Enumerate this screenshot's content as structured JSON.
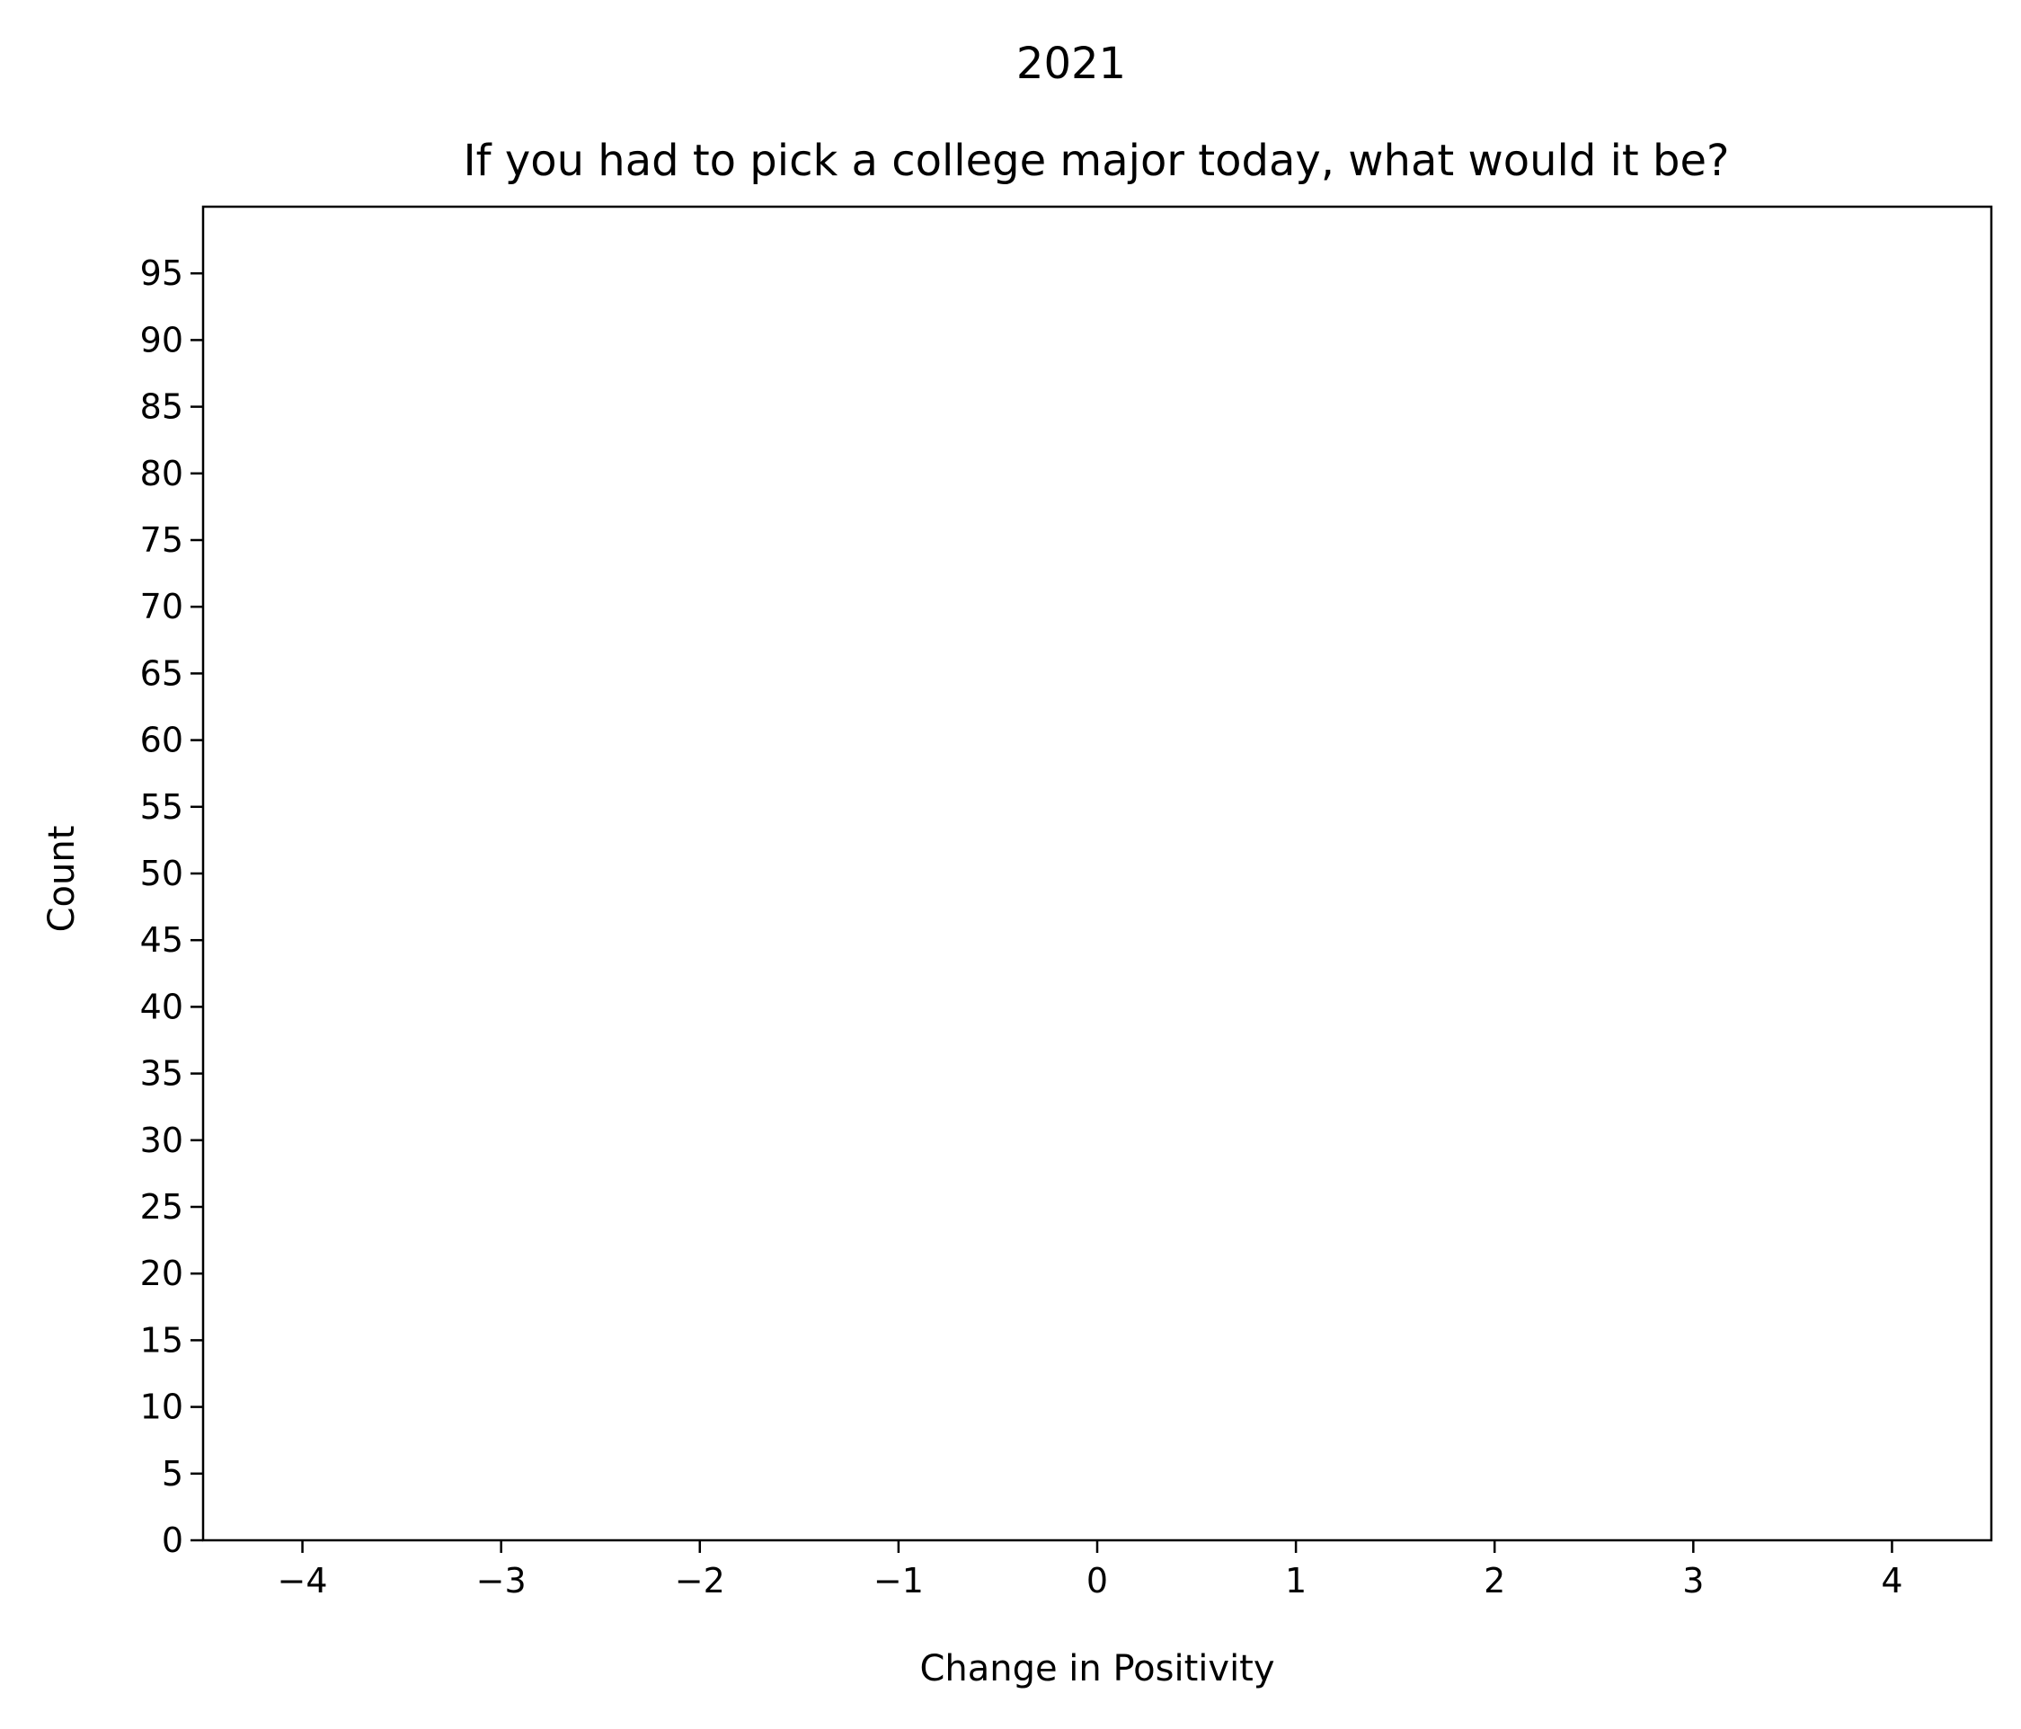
{
  "chart_data": {
    "type": "bar",
    "suptitle": "2021",
    "title": "If you had to pick a college major today, what would it be?",
    "xlabel": "Change in Positivity",
    "ylabel": "Count",
    "xlim": [
      -4.5,
      4.5
    ],
    "ylim": [
      0,
      100
    ],
    "xticks": [
      -4,
      -3,
      -2,
      -1,
      0,
      1,
      2,
      3,
      4
    ],
    "xtick_labels": [
      "−4",
      "−3",
      "−2",
      "−1",
      "0",
      "1",
      "2",
      "3",
      "4"
    ],
    "yticks": [
      0,
      5,
      10,
      15,
      20,
      25,
      30,
      35,
      40,
      45,
      50,
      55,
      60,
      65,
      70,
      75,
      80,
      85,
      90,
      95
    ],
    "ytick_labels": [
      "0",
      "5",
      "10",
      "15",
      "20",
      "25",
      "30",
      "35",
      "40",
      "45",
      "50",
      "55",
      "60",
      "65",
      "70",
      "75",
      "80",
      "85",
      "90",
      "95"
    ],
    "grid": false,
    "x": [],
    "values": []
  }
}
